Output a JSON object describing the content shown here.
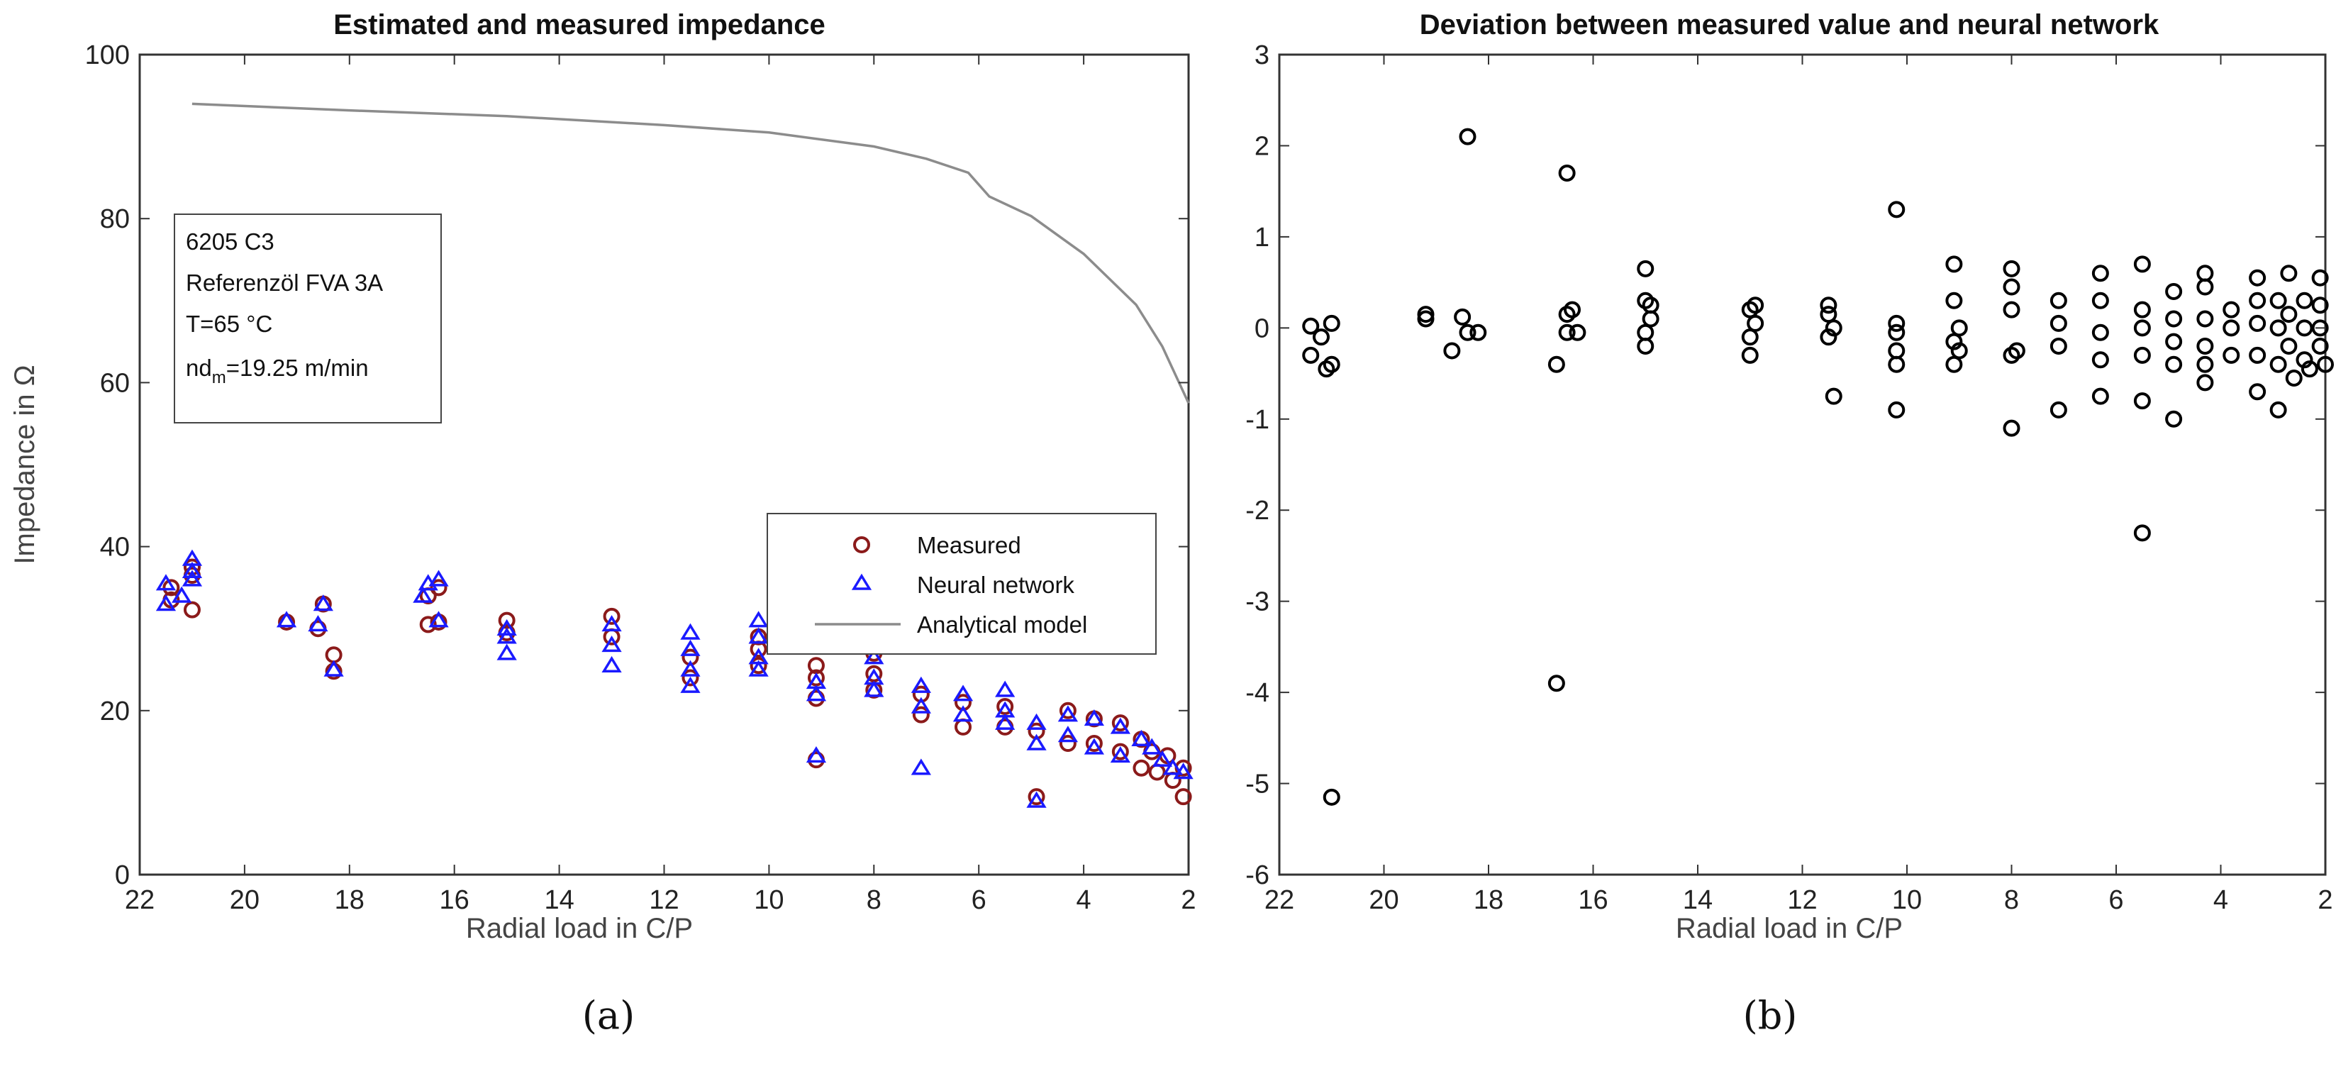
{
  "chart_data": [
    {
      "type": "scatter",
      "title": "Estimated and measured impedance",
      "xlabel": "Radial load in C/P",
      "ylabel": "Impedance in Ω",
      "xlim": [
        22,
        2
      ],
      "ylim": [
        0,
        100
      ],
      "x_ticks": [
        "22",
        "20",
        "18",
        "16",
        "14",
        "12",
        "10",
        "8",
        "6",
        "4",
        "2"
      ],
      "y_ticks": [
        "0",
        "20",
        "40",
        "60",
        "80",
        "100"
      ],
      "panel_label": "(a)",
      "info_lines": [
        "6205 C3",
        "Referenzöl FVA 3A",
        "T=65 °C",
        "nd",
        "m",
        "=19.25 m/min"
      ],
      "legend": [
        "Measured",
        "Neural network",
        "Analytical model"
      ],
      "colors": {
        "measured": "#8b1a1a",
        "neural": "#1a1aff",
        "analytical": "#8c8c8c"
      },
      "series": [
        {
          "name": "Measured",
          "marker": "circle",
          "points": [
            [
              21.4,
              33.5
            ],
            [
              21.4,
              35.0
            ],
            [
              21.0,
              32.3
            ],
            [
              21.0,
              36.5
            ],
            [
              21.0,
              37.5
            ],
            [
              19.2,
              30.8
            ],
            [
              18.6,
              30.0
            ],
            [
              18.3,
              26.8
            ],
            [
              18.3,
              24.8
            ],
            [
              18.5,
              33.0
            ],
            [
              16.5,
              30.5
            ],
            [
              16.5,
              34.0
            ],
            [
              16.3,
              35.0
            ],
            [
              16.3,
              30.8
            ],
            [
              15.0,
              31.0
            ],
            [
              15.0,
              29.5
            ],
            [
              13.0,
              31.5
            ],
            [
              13.0,
              29.0
            ],
            [
              11.5,
              26.5
            ],
            [
              11.5,
              24.0
            ],
            [
              10.2,
              29.0
            ],
            [
              10.2,
              27.5
            ],
            [
              10.2,
              25.5
            ],
            [
              9.1,
              25.5
            ],
            [
              9.1,
              24.0
            ],
            [
              9.1,
              14.0
            ],
            [
              9.1,
              21.5
            ],
            [
              8.0,
              27.0
            ],
            [
              8.0,
              24.5
            ],
            [
              8.0,
              22.5
            ],
            [
              7.1,
              22.0
            ],
            [
              7.1,
              19.5
            ],
            [
              6.3,
              21.0
            ],
            [
              6.3,
              18.0
            ],
            [
              5.5,
              20.5
            ],
            [
              5.5,
              18.0
            ],
            [
              4.9,
              17.5
            ],
            [
              4.9,
              9.5
            ],
            [
              4.3,
              20.0
            ],
            [
              4.3,
              16.0
            ],
            [
              3.8,
              19.0
            ],
            [
              3.8,
              16.0
            ],
            [
              3.3,
              18.5
            ],
            [
              3.3,
              15.0
            ],
            [
              2.9,
              16.5
            ],
            [
              2.9,
              13.0
            ],
            [
              2.7,
              15.0
            ],
            [
              2.6,
              12.5
            ],
            [
              2.4,
              14.5
            ],
            [
              2.3,
              11.5
            ],
            [
              2.1,
              13.0
            ],
            [
              2.1,
              9.5
            ]
          ]
        },
        {
          "name": "Neural network",
          "marker": "triangle",
          "points": [
            [
              21.5,
              35.5
            ],
            [
              21.5,
              33.0
            ],
            [
              21.2,
              34.0
            ],
            [
              21.0,
              38.5
            ],
            [
              21.0,
              37.0
            ],
            [
              21.0,
              36.0
            ],
            [
              19.2,
              31.0
            ],
            [
              18.6,
              30.5
            ],
            [
              18.5,
              33.0
            ],
            [
              18.3,
              25.0
            ],
            [
              16.6,
              34.0
            ],
            [
              16.5,
              35.5
            ],
            [
              16.3,
              36.0
            ],
            [
              16.3,
              31.0
            ],
            [
              15.0,
              30.0
            ],
            [
              15.0,
              27.0
            ],
            [
              15.0,
              29.0
            ],
            [
              13.0,
              30.5
            ],
            [
              13.0,
              28.0
            ],
            [
              13.0,
              25.5
            ],
            [
              11.5,
              29.5
            ],
            [
              11.5,
              27.5
            ],
            [
              11.5,
              25.0
            ],
            [
              11.5,
              23.0
            ],
            [
              10.2,
              31.0
            ],
            [
              10.2,
              29.0
            ],
            [
              10.2,
              26.5
            ],
            [
              10.2,
              25.0
            ],
            [
              9.1,
              23.5
            ],
            [
              9.1,
              22.0
            ],
            [
              9.1,
              14.5
            ],
            [
              8.0,
              26.5
            ],
            [
              8.0,
              24.0
            ],
            [
              8.0,
              22.5
            ],
            [
              7.1,
              23.0
            ],
            [
              7.1,
              20.5
            ],
            [
              7.1,
              13.0
            ],
            [
              6.3,
              22.0
            ],
            [
              6.3,
              19.5
            ],
            [
              5.5,
              22.5
            ],
            [
              5.5,
              20.0
            ],
            [
              5.5,
              18.5
            ],
            [
              4.9,
              18.5
            ],
            [
              4.9,
              16.0
            ],
            [
              4.9,
              9.0
            ],
            [
              4.3,
              19.5
            ],
            [
              4.3,
              17.0
            ],
            [
              3.8,
              19.0
            ],
            [
              3.8,
              15.5
            ],
            [
              3.3,
              18.0
            ],
            [
              3.3,
              14.5
            ],
            [
              2.9,
              16.5
            ],
            [
              2.7,
              15.5
            ],
            [
              2.5,
              14.0
            ],
            [
              2.3,
              13.0
            ],
            [
              2.1,
              12.5
            ]
          ]
        },
        {
          "name": "Analytical model",
          "marker": "line",
          "points": [
            [
              21.0,
              94.0
            ],
            [
              18.0,
              93.2
            ],
            [
              15.0,
              92.5
            ],
            [
              12.0,
              91.4
            ],
            [
              10.0,
              90.5
            ],
            [
              8.0,
              88.8
            ],
            [
              7.0,
              87.3
            ],
            [
              6.2,
              85.6
            ],
            [
              5.8,
              82.7
            ],
            [
              5.0,
              80.3
            ],
            [
              4.0,
              75.7
            ],
            [
              3.0,
              69.5
            ],
            [
              2.5,
              64.4
            ],
            [
              2.0,
              57.5
            ]
          ]
        }
      ]
    },
    {
      "type": "scatter",
      "title": "Deviation between measured value and neural network",
      "xlabel": "Radial load in C/P",
      "ylabel": "",
      "xlim": [
        22,
        2
      ],
      "ylim": [
        -6,
        3
      ],
      "x_ticks": [
        "22",
        "20",
        "18",
        "16",
        "14",
        "12",
        "10",
        "8",
        "6",
        "4",
        "2"
      ],
      "y_ticks": [
        "-6",
        "-5",
        "-4",
        "-3",
        "-2",
        "-1",
        "0",
        "1",
        "2",
        "3"
      ],
      "panel_label": "(b)",
      "series": [
        {
          "name": "Deviation",
          "marker": "circle",
          "points": [
            [
              21.4,
              0.02
            ],
            [
              21.4,
              -0.3
            ],
            [
              21.2,
              -0.1
            ],
            [
              21.1,
              -0.45
            ],
            [
              21.0,
              0.05
            ],
            [
              21.0,
              -0.4
            ],
            [
              21.0,
              -5.15
            ],
            [
              19.2,
              0.1
            ],
            [
              19.2,
              0.15
            ],
            [
              18.7,
              -0.25
            ],
            [
              18.5,
              0.12
            ],
            [
              18.4,
              -0.05
            ],
            [
              18.4,
              2.1
            ],
            [
              18.2,
              -0.05
            ],
            [
              16.7,
              -0.4
            ],
            [
              16.5,
              -0.05
            ],
            [
              16.5,
              0.15
            ],
            [
              16.4,
              0.2
            ],
            [
              16.3,
              -0.05
            ],
            [
              16.5,
              1.7
            ],
            [
              16.7,
              -3.9
            ],
            [
              15.0,
              0.65
            ],
            [
              15.0,
              0.3
            ],
            [
              14.9,
              0.1
            ],
            [
              15.0,
              -0.05
            ],
            [
              15.0,
              -0.2
            ],
            [
              14.9,
              0.25
            ],
            [
              13.0,
              0.2
            ],
            [
              12.9,
              0.05
            ],
            [
              13.0,
              -0.1
            ],
            [
              13.0,
              -0.3
            ],
            [
              12.9,
              0.25
            ],
            [
              11.5,
              0.25
            ],
            [
              11.5,
              0.15
            ],
            [
              11.4,
              0.0
            ],
            [
              11.5,
              -0.1
            ],
            [
              11.4,
              -0.75
            ],
            [
              10.2,
              1.3
            ],
            [
              10.2,
              0.05
            ],
            [
              10.2,
              -0.05
            ],
            [
              10.2,
              -0.25
            ],
            [
              10.2,
              -0.4
            ],
            [
              10.2,
              -0.9
            ],
            [
              9.1,
              0.7
            ],
            [
              9.1,
              0.3
            ],
            [
              9.0,
              0.0
            ],
            [
              9.1,
              -0.15
            ],
            [
              9.0,
              -0.25
            ],
            [
              9.1,
              -0.4
            ],
            [
              8.0,
              0.65
            ],
            [
              8.0,
              0.45
            ],
            [
              8.0,
              0.2
            ],
            [
              7.9,
              -0.25
            ],
            [
              8.0,
              -0.3
            ],
            [
              8.0,
              -1.1
            ],
            [
              7.1,
              0.3
            ],
            [
              7.1,
              0.05
            ],
            [
              7.1,
              -0.2
            ],
            [
              7.1,
              -0.9
            ],
            [
              6.3,
              0.6
            ],
            [
              6.3,
              0.3
            ],
            [
              6.3,
              -0.05
            ],
            [
              6.3,
              -0.35
            ],
            [
              6.3,
              -0.75
            ],
            [
              5.5,
              0.7
            ],
            [
              5.5,
              0.2
            ],
            [
              5.5,
              0.0
            ],
            [
              5.5,
              -0.3
            ],
            [
              5.5,
              -0.8
            ],
            [
              5.5,
              -2.25
            ],
            [
              4.9,
              0.4
            ],
            [
              4.9,
              0.1
            ],
            [
              4.9,
              -0.15
            ],
            [
              4.9,
              -0.4
            ],
            [
              4.9,
              -1.0
            ],
            [
              4.3,
              0.6
            ],
            [
              4.3,
              0.45
            ],
            [
              4.3,
              0.1
            ],
            [
              4.3,
              -0.2
            ],
            [
              4.3,
              -0.4
            ],
            [
              4.3,
              -0.6
            ],
            [
              3.8,
              0.2
            ],
            [
              3.8,
              0.0
            ],
            [
              3.8,
              -0.3
            ],
            [
              3.3,
              0.55
            ],
            [
              3.3,
              0.3
            ],
            [
              3.3,
              0.05
            ],
            [
              3.3,
              -0.3
            ],
            [
              3.3,
              -0.7
            ],
            [
              2.9,
              0.3
            ],
            [
              2.9,
              0.0
            ],
            [
              2.9,
              -0.4
            ],
            [
              2.9,
              -0.9
            ],
            [
              2.7,
              0.6
            ],
            [
              2.7,
              0.15
            ],
            [
              2.7,
              -0.2
            ],
            [
              2.6,
              -0.55
            ],
            [
              2.4,
              0.3
            ],
            [
              2.4,
              0.0
            ],
            [
              2.4,
              -0.35
            ],
            [
              2.3,
              -0.45
            ],
            [
              2.1,
              0.55
            ],
            [
              2.1,
              0.25
            ],
            [
              2.1,
              0.0
            ],
            [
              2.1,
              -0.2
            ],
            [
              2.0,
              -0.4
            ]
          ]
        }
      ]
    }
  ]
}
